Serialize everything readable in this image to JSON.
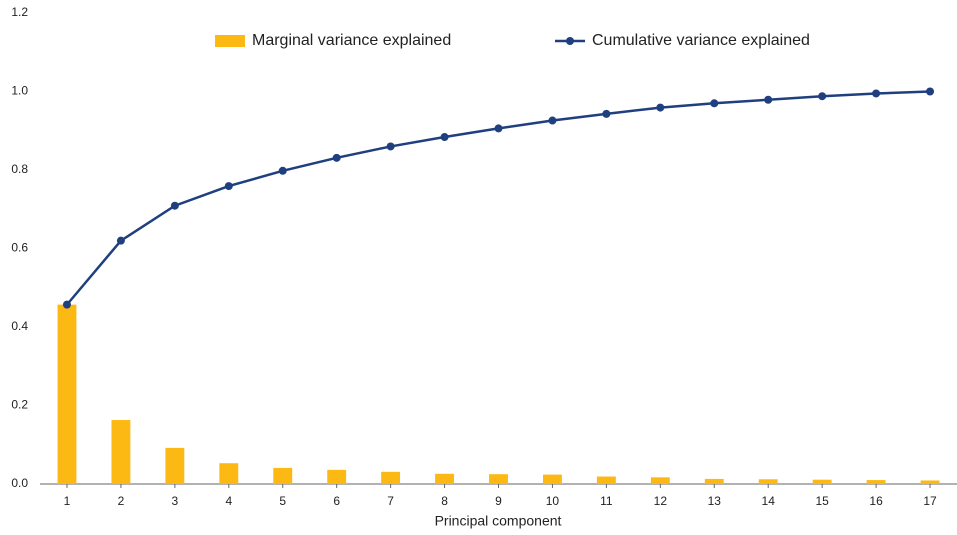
{
  "chart_data": {
    "type": "combo",
    "x_label": "Principal component",
    "categories": [
      "1",
      "2",
      "3",
      "4",
      "5",
      "6",
      "7",
      "8",
      "9",
      "10",
      "11",
      "12",
      "13",
      "14",
      "15",
      "16",
      "17"
    ],
    "series": [
      {
        "name": "Marginal variance explained",
        "type": "bar",
        "color": "#fdb913",
        "values": [
          0.457,
          0.163,
          0.092,
          0.053,
          0.041,
          0.036,
          0.031,
          0.026,
          0.025,
          0.024,
          0.019,
          0.017,
          0.013,
          0.012,
          0.011,
          0.01,
          0.009
        ]
      },
      {
        "name": "Cumulative variance explained",
        "type": "line",
        "color": "#1f3f7f",
        "values": [
          0.457,
          0.62,
          0.709,
          0.759,
          0.798,
          0.831,
          0.86,
          0.884,
          0.906,
          0.926,
          0.943,
          0.959,
          0.97,
          0.979,
          0.988,
          0.995,
          1.0
        ]
      }
    ],
    "ylim": [
      0,
      1.2
    ],
    "yticks": [
      {
        "value": 0,
        "label": "0.0"
      },
      0.2,
      0.4,
      0.6,
      0.8,
      {
        "value": 1,
        "label": "1.0"
      },
      1.2
    ],
    "grid": false
  }
}
